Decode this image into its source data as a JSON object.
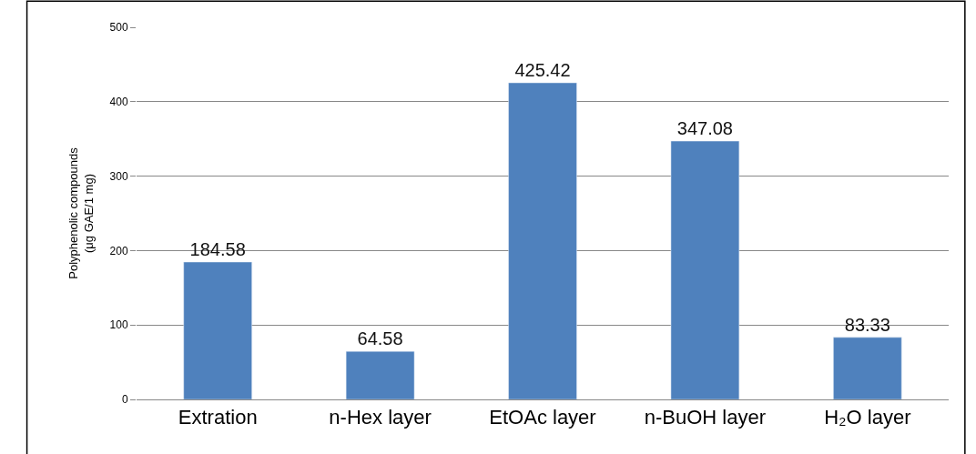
{
  "chart_data": {
    "type": "bar",
    "ylabel": "Polyphenolic compounds\n(μg GAE/1 mg)",
    "categories": [
      "Extration",
      "n-Hex layer",
      "EtOAc layer",
      "n-BuOH layer",
      "H₂O layer"
    ],
    "values": [
      184.58,
      64.58,
      425.42,
      347.08,
      83.33
    ],
    "color": "#4f81bd",
    "ylim": [
      0,
      500
    ],
    "yticks": [
      0,
      100,
      200,
      300,
      400,
      500
    ],
    "grid": "y",
    "data_labels": true
  }
}
